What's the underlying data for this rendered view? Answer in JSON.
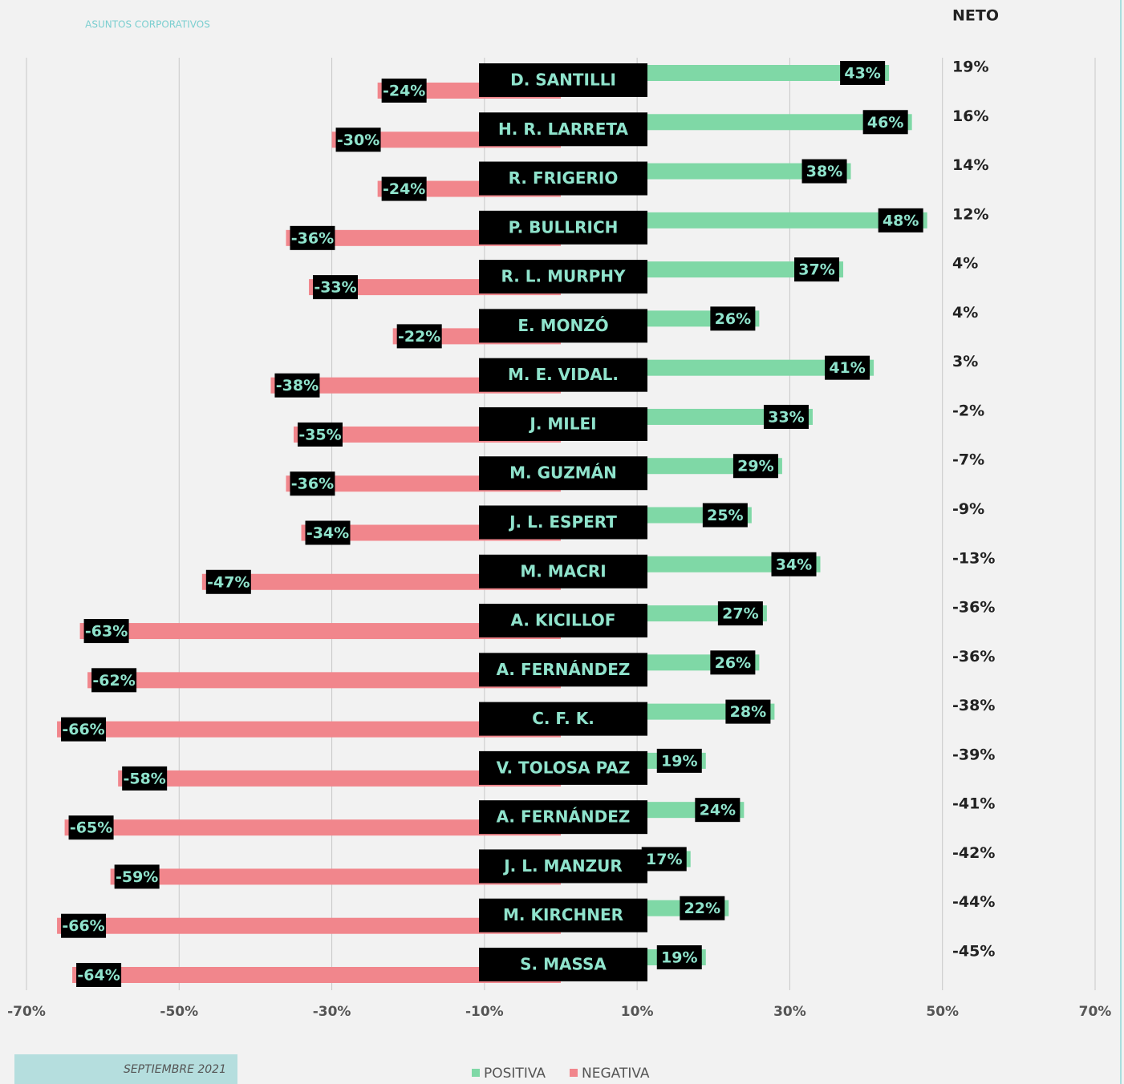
{
  "chart_data": {
    "type": "bar",
    "orientation": "horizontal",
    "logo_text": "ASUNTOS CORPORATIVOS",
    "footer": "SEPTIEMBRE 2021",
    "categories": [
      "D. SANTILLI",
      "H. R. LARRETA",
      "R. FRIGERIO",
      "P. BULLRICH",
      "R. L. MURPHY",
      "E. MONZÓ",
      "M. E. VIDAL.",
      "J. MILEI",
      "M. GUZMÁN",
      "J. L. ESPERT",
      "M. MACRI",
      "A. KICILLOF",
      "A. FERNÁNDEZ",
      "C. F. K.",
      "V. TOLOSA PAZ",
      "A. FERNÁNDEZ",
      "J. L. MANZUR",
      "M. KIRCHNER",
      "S. MASSA"
    ],
    "series": [
      {
        "name": "POSITIVA",
        "color": "#7fd8a6",
        "values": [
          43,
          46,
          38,
          48,
          37,
          26,
          41,
          33,
          29,
          25,
          34,
          27,
          26,
          28,
          19,
          24,
          17,
          22,
          19
        ],
        "value_labels": [
          "43%",
          "46%",
          "38%",
          "48%",
          "37%",
          "26%",
          "41%",
          "33%",
          "29%",
          "25%",
          "34%",
          "27%",
          "26%",
          "28%",
          "19%",
          "24%",
          "17%",
          "22%",
          "19%"
        ]
      },
      {
        "name": "NEGATIVA",
        "color": "#f1868c",
        "values": [
          -24,
          -30,
          -24,
          -36,
          -33,
          -22,
          -38,
          -35,
          -36,
          -34,
          -47,
          -63,
          -62,
          -66,
          -58,
          -65,
          -59,
          -66,
          -64
        ],
        "value_labels": [
          "-24%",
          "-30%",
          "-24%",
          "-36%",
          "-33%",
          "-22%",
          "-38%",
          "-35%",
          "-36%",
          "-34%",
          "-47%",
          "-63%",
          "-62%",
          "-66%",
          "-58%",
          "-65%",
          "-59%",
          "-66%",
          "-64%"
        ]
      }
    ],
    "neto": {
      "title": "NETO",
      "values": [
        19,
        16,
        14,
        12,
        4,
        4,
        3,
        -2,
        -7,
        -9,
        -13,
        -36,
        -36,
        -38,
        -39,
        -41,
        -42,
        -44,
        -45
      ],
      "value_labels": [
        "19%",
        "16%",
        "14%",
        "12%",
        "4%",
        "4%",
        "3%",
        "-2%",
        "-7%",
        "-9%",
        "-13%",
        "-36%",
        "-36%",
        "-38%",
        "-39%",
        "-41%",
        "-42%",
        "-44%",
        "-45%"
      ]
    },
    "xlim": [
      -70,
      70
    ],
    "xticks": [
      {
        "value": -70,
        "label": "-70%"
      },
      {
        "value": -50,
        "label": "-50%"
      },
      {
        "value": -30,
        "label": "-30%"
      },
      {
        "value": -10,
        "label": "-10%"
      },
      {
        "value": 10,
        "label": "10%"
      },
      {
        "value": 30,
        "label": "30%"
      },
      {
        "value": 50,
        "label": "50%"
      },
      {
        "value": 70,
        "label": "70%"
      }
    ],
    "grid": true
  }
}
